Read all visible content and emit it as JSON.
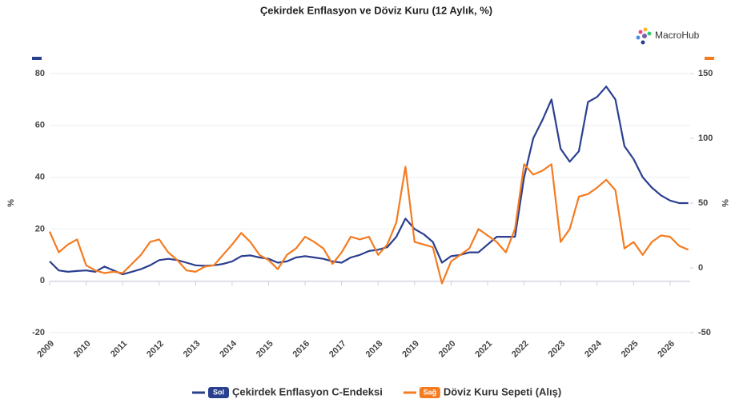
{
  "chart_data": {
    "type": "line",
    "title": "Çekirdek Enflasyon ve Döviz Kuru (12 Aylık, %)",
    "watermark": "MacroHub",
    "ylabel": "%",
    "y2label": "%",
    "x": [
      2009,
      2009.25,
      2009.5,
      2009.75,
      2010,
      2010.25,
      2010.5,
      2010.75,
      2011,
      2011.25,
      2011.5,
      2011.75,
      2012,
      2012.25,
      2012.5,
      2012.75,
      2013,
      2013.25,
      2013.5,
      2013.75,
      2014,
      2014.25,
      2014.5,
      2014.75,
      2015,
      2015.25,
      2015.5,
      2015.75,
      2016,
      2016.25,
      2016.5,
      2016.75,
      2017,
      2017.25,
      2017.5,
      2017.75,
      2018,
      2018.25,
      2018.5,
      2018.75,
      2019,
      2019.25,
      2019.5,
      2019.75,
      2020,
      2020.25,
      2020.5,
      2020.75,
      2021,
      2021.25,
      2021.5,
      2021.75,
      2022,
      2022.25,
      2022.5,
      2022.75,
      2023,
      2023.25,
      2023.5,
      2023.75,
      2024,
      2024.25,
      2024.5,
      2024.75,
      2025,
      2025.25,
      2025.5,
      2025.75,
      2026,
      2026.25,
      2026.5
    ],
    "series": [
      {
        "name": "Çekirdek Enflasyon C-Endeksi",
        "badge": "Sol",
        "color": "#2b3f8f",
        "axis": "y",
        "values": [
          7.5,
          4,
          3.5,
          3.8,
          4,
          3.5,
          5.5,
          4,
          2.5,
          3.5,
          4.5,
          6,
          8,
          8.5,
          8,
          7,
          6,
          5.8,
          6,
          6.5,
          7.5,
          9.5,
          9.8,
          9,
          8.5,
          7,
          7.5,
          9,
          9.5,
          9,
          8.5,
          7.5,
          7,
          9,
          10,
          11.5,
          12,
          13,
          17,
          24,
          20,
          18,
          15,
          7,
          9.5,
          10,
          11,
          11,
          14,
          17,
          17,
          17,
          40,
          55,
          62,
          70,
          51,
          46,
          50,
          69,
          71,
          75,
          70,
          52,
          47,
          40,
          36,
          33,
          31,
          30,
          30
        ]
      },
      {
        "name": "Döviz Kuru Sepeti (Alış)",
        "badge": "Sağ",
        "color": "#f47b20",
        "axis": "y2",
        "values": [
          28,
          12,
          18,
          22,
          2,
          -2,
          -4,
          -3,
          -4,
          3,
          10,
          20,
          22,
          12,
          6,
          -2,
          -3,
          1,
          2,
          10,
          18,
          27,
          20,
          10,
          6,
          -1,
          10,
          15,
          24,
          20,
          15,
          3,
          12,
          24,
          22,
          24,
          10,
          18,
          35,
          78,
          20,
          18,
          16,
          -12,
          5,
          10,
          15,
          30,
          25,
          20,
          12,
          30,
          80,
          72,
          75,
          80,
          20,
          30,
          55,
          57,
          62,
          68,
          60,
          15,
          20,
          10,
          20,
          25,
          24,
          17,
          14
        ]
      }
    ],
    "xlim": [
      2009,
      2026.55
    ],
    "xticks": [
      2009,
      2010,
      2011,
      2012,
      2013,
      2014,
      2015,
      2016,
      2017,
      2018,
      2019,
      2020,
      2021,
      2022,
      2023,
      2024,
      2025,
      2026
    ],
    "ylim": [
      -20,
      80
    ],
    "yticks": [
      -20,
      0,
      20,
      40,
      60,
      80
    ],
    "y2lim": [
      -50,
      150
    ],
    "y2ticks": [
      -50,
      0,
      50,
      100,
      150
    ],
    "grid": true
  }
}
